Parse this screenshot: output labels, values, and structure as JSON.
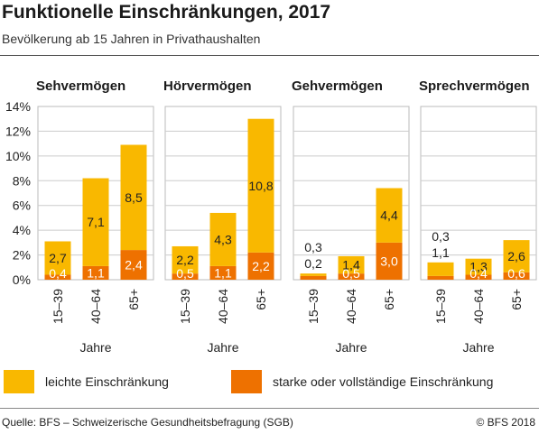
{
  "header": {
    "title": "Funktionelle Einschränkungen, 2017",
    "subtitle": "Bevölkerung ab 15 Jahren in Privathaushalten"
  },
  "footer": {
    "source": "Quelle: BFS – Schweizerische Gesundheitsbefragung (SGB)",
    "copyright": "© BFS 2018"
  },
  "legend": [
    {
      "label": "leichte Einschränkung",
      "color": "#f9b800"
    },
    {
      "label": "starke oder vollständige Einschränkung",
      "color": "#ee7100"
    }
  ],
  "chart_data": {
    "type": "bar",
    "stacked": true,
    "categories": [
      "15–39",
      "40–64",
      "65+"
    ],
    "xlabel": "Jahre",
    "ylim": [
      0,
      14
    ],
    "yticks": [
      "0%",
      "2%",
      "4%",
      "6%",
      "8%",
      "10%",
      "12%",
      "14%"
    ],
    "grid": true,
    "legend_position": "bottom",
    "panels": [
      {
        "title": "Sehvermögen",
        "series": [
          {
            "name": "starke oder vollständige Einschränkung",
            "values": [
              0.4,
              1.1,
              2.4
            ],
            "labels": [
              "0,4",
              "1,1",
              "2,4"
            ]
          },
          {
            "name": "leichte Einschränkung",
            "values": [
              2.7,
              7.1,
              8.5
            ],
            "labels": [
              "2,7",
              "7,1",
              "8,5"
            ]
          }
        ]
      },
      {
        "title": "Hörvermögen",
        "series": [
          {
            "name": "starke oder vollständige Einschränkung",
            "values": [
              0.5,
              1.1,
              2.2
            ],
            "labels": [
              "0,5",
              "1,1",
              "2,2"
            ]
          },
          {
            "name": "leichte Einschränkung",
            "values": [
              2.2,
              4.3,
              10.8
            ],
            "labels": [
              "2,2",
              "4,3",
              "10,8"
            ]
          }
        ]
      },
      {
        "title": "Gehvermögen",
        "series": [
          {
            "name": "starke oder vollständige Einschränkung",
            "values": [
              0.3,
              0.5,
              3.0
            ],
            "labels": [
              "0,3",
              "0,5",
              "3,0"
            ]
          },
          {
            "name": "leichte Einschränkung",
            "values": [
              0.2,
              1.4,
              4.4
            ],
            "labels": [
              "0,2",
              "1,4",
              "4,4"
            ]
          }
        ]
      },
      {
        "title": "Sprechvermögen",
        "series": [
          {
            "name": "starke oder vollständige Einschränkung",
            "values": [
              0.3,
              0.4,
              0.6
            ],
            "labels": [
              "0,3",
              "0,4",
              "0,6"
            ]
          },
          {
            "name": "leichte Einschränkung",
            "values": [
              1.1,
              1.3,
              2.6
            ],
            "labels": [
              "1,1",
              "1,3",
              "2,6"
            ]
          }
        ]
      }
    ]
  }
}
